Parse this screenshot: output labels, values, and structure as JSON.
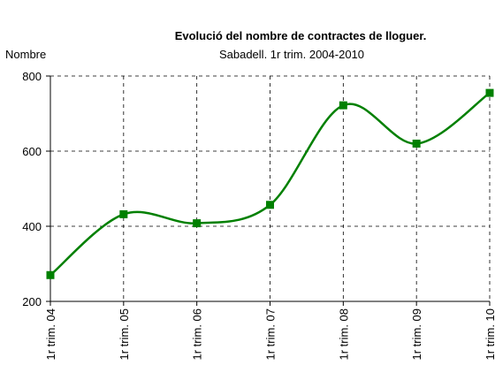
{
  "chart_data": {
    "type": "line",
    "title": "Evolució del nombre de contractes de lloguer.",
    "subtitle": "Sabadell. 1r trim. 2004-2010",
    "y_label": "Nombre",
    "categories": [
      "1r trim. 04",
      "1r trim. 05",
      "1r trim. 06",
      "1r trim. 07",
      "1r trim. 08",
      "1r trim. 09",
      "1r trim. 10"
    ],
    "values": [
      270,
      432,
      408,
      457,
      722,
      620,
      755
    ],
    "color": "#008000",
    "smooth": true,
    "ylim": [
      200,
      800
    ],
    "yticks": [
      200,
      400,
      600,
      800
    ],
    "grid": true
  }
}
